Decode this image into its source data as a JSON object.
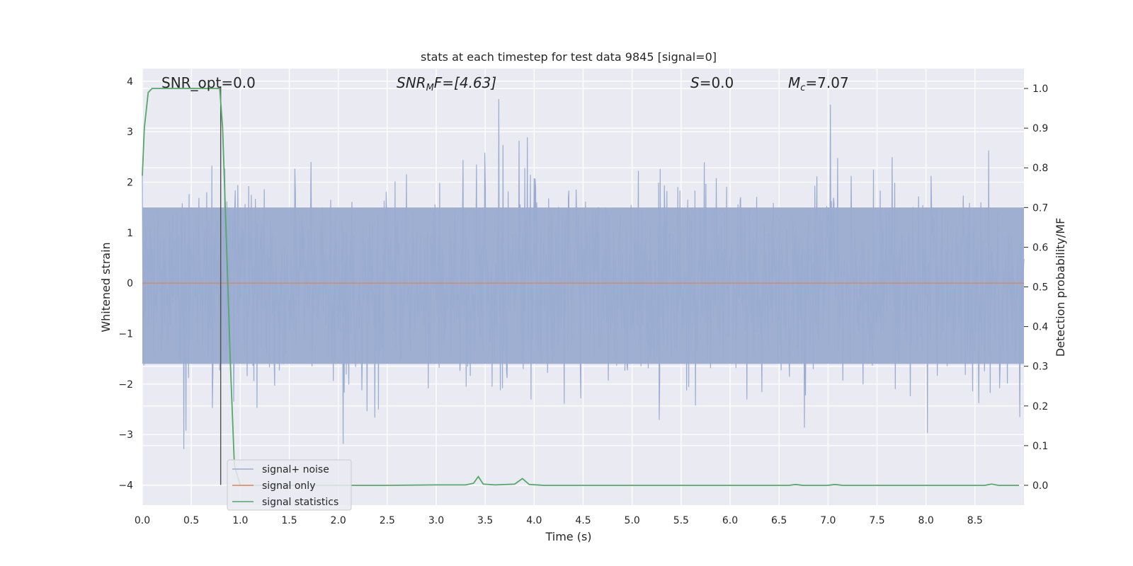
{
  "chart_data": {
    "type": "line",
    "title": "stats at each timestep for test data 9845 [signal=0]",
    "xlabel": "Time (s)",
    "ylabel": "Whitened strain",
    "y2label": "Detection probability/MF",
    "xlim": [
      0,
      9.0
    ],
    "ylim": [
      -4.4,
      4.25
    ],
    "y2lim": [
      -0.05,
      1.05
    ],
    "x_ticks": [
      0.0,
      0.5,
      1.0,
      1.5,
      2.0,
      2.5,
      3.0,
      3.5,
      4.0,
      4.5,
      5.0,
      5.5,
      6.0,
      6.5,
      7.0,
      7.5,
      8.0,
      8.5
    ],
    "x_tick_labels": [
      "0.0",
      "0.5",
      "1.0",
      "1.5",
      "2.0",
      "2.5",
      "3.0",
      "3.5",
      "4.0",
      "4.5",
      "5.0",
      "5.5",
      "6.0",
      "6.5",
      "7.0",
      "7.5",
      "8.0",
      "8.5"
    ],
    "y_ticks": [
      -4,
      -3,
      -2,
      -1,
      0,
      1,
      2,
      3,
      4
    ],
    "y_tick_labels": [
      "−4",
      "−3",
      "−2",
      "−1",
      "0",
      "1",
      "2",
      "3",
      "4"
    ],
    "y2_ticks": [
      0.0,
      0.1,
      0.2,
      0.3,
      0.4,
      0.5,
      0.6,
      0.7,
      0.8,
      0.9,
      1.0
    ],
    "y2_tick_labels": [
      "0.0",
      "0.1",
      "0.2",
      "0.3",
      "0.4",
      "0.5",
      "0.6",
      "0.7",
      "0.8",
      "0.9",
      "1.0"
    ],
    "grid": true,
    "legend": {
      "placement": "lower-left",
      "entries": [
        "signal+ noise",
        "signal only",
        "signal statistics"
      ]
    },
    "annotations": {
      "snr_opt": "SNR_opt=0.0",
      "snr_mf_prefix": "SNR",
      "snr_mf_sub": "M",
      "snr_mf_suffix": "F=[4.63]",
      "s_label": "S",
      "s_value": "=0.0",
      "mc_label": "M",
      "mc_sub": "c",
      "mc_value": "=7.07"
    },
    "vertical_marker_x": 0.8,
    "noise_strain": {
      "x_range": [
        0,
        9.0
      ],
      "typical_abs_max": 2.5,
      "peak_max": 3.9,
      "peak_min": -4.0
    },
    "signal_only": {
      "x": [
        0,
        9.0
      ],
      "y": [
        0,
        0
      ]
    },
    "signal_statistics": {
      "x": [
        0.0,
        0.02,
        0.06,
        0.1,
        0.2,
        0.4,
        0.6,
        0.79,
        0.82,
        0.86,
        0.9,
        0.94,
        1.0,
        1.5,
        2.0,
        2.5,
        3.0,
        3.3,
        3.38,
        3.43,
        3.48,
        3.6,
        3.8,
        3.88,
        3.95,
        4.1,
        5.0,
        6.0,
        6.6,
        6.67,
        6.74,
        7.0,
        7.07,
        7.15,
        8.0,
        8.6,
        8.67,
        8.74,
        8.95
      ],
      "y": [
        0.78,
        0.9,
        0.99,
        1.0,
        1.0,
        1.0,
        1.0,
        1.0,
        0.9,
        0.6,
        0.3,
        0.05,
        0.0,
        0.0,
        0.0,
        0.0,
        0.001,
        0.001,
        0.005,
        0.022,
        0.003,
        0.001,
        0.003,
        0.017,
        0.002,
        0.0,
        0.0,
        0.0,
        0.0,
        0.002,
        0.0,
        0.0,
        0.002,
        0.0,
        0.0,
        0.0,
        0.003,
        0.0,
        0.0
      ]
    },
    "colors": {
      "background": "#eaeaf2",
      "grid": "#ffffff",
      "noise": "#9aacd0",
      "signal_only": "#dd8452",
      "statistics": "#55a868",
      "marker": "#505050",
      "text": "#262626"
    }
  }
}
